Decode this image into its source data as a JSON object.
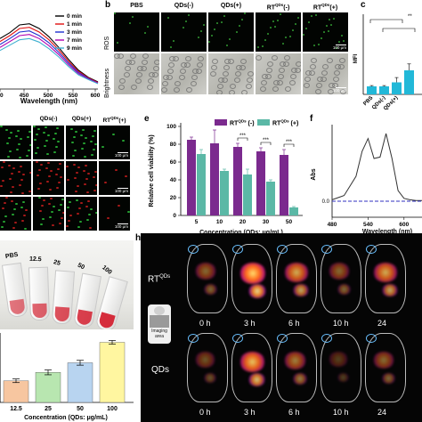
{
  "panel_a": {
    "legend": [
      "0 min",
      "1 min",
      "3 min",
      "7 min",
      "9 min"
    ],
    "legend_colors": [
      "#000000",
      "#e01010",
      "#2030d0",
      "#b000b0",
      "#40b0d0"
    ],
    "xlabel": "Wavelength (nm)",
    "ticks": [
      "00",
      "450",
      "500",
      "550",
      "600"
    ]
  },
  "panel_b": {
    "letter": "b",
    "cols": [
      "PBS",
      "QDs(-)",
      "QDs(+)",
      "RT",
      "RT"
    ],
    "col_sup": [
      "",
      "",
      "",
      "QDs",
      "QDs"
    ],
    "col_suffix": [
      "",
      "",
      "",
      "(-)",
      "(+)"
    ],
    "rows": [
      "ROS",
      "Brightness"
    ],
    "scale": "100 μm"
  },
  "panel_c": {
    "letter": "c",
    "ylabel": "MFI",
    "categories": [
      "PBS",
      "QDs(-)",
      "QDs(+)"
    ],
    "sig": "**"
  },
  "panel_d": {
    "cols": [
      "QDs(-)",
      "QDs(+)",
      "RT"
    ],
    "col_sup": [
      "",
      "",
      "QDs"
    ],
    "col_suffix": [
      "",
      "",
      "(+)"
    ],
    "scale": "100 μm"
  },
  "panel_e": {
    "letter": "e",
    "ylabel": "Relative cell viability (%)",
    "xlabel": "Concentration (QDs: μg/mL)",
    "legend1": "RT",
    "legend1_sup": "QDs",
    "legend1_suffix": " (-)",
    "legend2": "RT",
    "legend2_sup": "QDs",
    "legend2_suffix": " (+)",
    "yticks": [
      "0",
      "20",
      "40",
      "60",
      "80",
      "100"
    ],
    "sig": [
      "***",
      "***",
      "***"
    ]
  },
  "panel_f": {
    "letter": "f",
    "ylabel": "Abs",
    "xlabel": "Wavelength (nm)",
    "ticks": [
      "480",
      "540",
      "600"
    ],
    "ytick": "0.0"
  },
  "panel_g": {
    "tube_labels": [
      "PBS",
      "12.5",
      "25",
      "50",
      "100"
    ],
    "categories": [
      "12.5",
      "25",
      "50",
      "100"
    ],
    "xlabel": "Concentration (QDs: μg/mL)"
  },
  "panel_h": {
    "letter": "h",
    "times": [
      "0 h",
      "3 h",
      "6 h",
      "10 h",
      "24"
    ],
    "row1": "RT",
    "row1_sup": "QDs",
    "row2": "QDs",
    "imaging_area": "Imaging area"
  },
  "chart_data": [
    {
      "type": "line",
      "panel": "a",
      "xlabel": "Wavelength (nm)",
      "xlim": [
        400,
        600
      ],
      "series": [
        {
          "name": "0 min",
          "x": [
            400,
            420,
            440,
            460,
            480,
            500,
            520,
            540,
            560,
            580,
            600
          ],
          "y": [
            0.95,
            1.05,
            1.18,
            1.2,
            1.12,
            0.98,
            0.8,
            0.6,
            0.42,
            0.3,
            0.22
          ]
        },
        {
          "name": "1 min",
          "x": [
            400,
            420,
            440,
            460,
            480,
            500,
            520,
            540,
            560,
            580,
            600
          ],
          "y": [
            0.9,
            1.0,
            1.12,
            1.14,
            1.06,
            0.93,
            0.76,
            0.57,
            0.4,
            0.29,
            0.21
          ]
        },
        {
          "name": "3 min",
          "x": [
            400,
            420,
            440,
            460,
            480,
            500,
            520,
            540,
            560,
            580,
            600
          ],
          "y": [
            0.85,
            0.95,
            1.06,
            1.08,
            1.0,
            0.88,
            0.72,
            0.54,
            0.38,
            0.28,
            0.2
          ]
        },
        {
          "name": "7 min",
          "x": [
            400,
            420,
            440,
            460,
            480,
            500,
            520,
            540,
            560,
            580,
            600
          ],
          "y": [
            0.8,
            0.9,
            1.0,
            1.02,
            0.95,
            0.83,
            0.68,
            0.51,
            0.36,
            0.27,
            0.2
          ]
        },
        {
          "name": "9 min",
          "x": [
            400,
            420,
            440,
            460,
            480,
            500,
            520,
            540,
            560,
            580,
            600
          ],
          "y": [
            0.75,
            0.84,
            0.93,
            0.95,
            0.89,
            0.78,
            0.64,
            0.48,
            0.34,
            0.26,
            0.19
          ]
        }
      ]
    },
    {
      "type": "bar",
      "panel": "c",
      "ylabel": "MFI",
      "categories": [
        "PBS",
        "QDs(-)",
        "QDs(+)",
        ""
      ],
      "values": [
        1.0,
        1.0,
        1.5,
        3.0
      ],
      "errors": [
        0.1,
        0.1,
        0.6,
        0.8
      ]
    },
    {
      "type": "bar",
      "panel": "e",
      "ylabel": "Relative cell viability (%)",
      "xlabel": "Concentration (QDs: μg/mL)",
      "categories": [
        "5",
        "10",
        "20",
        "30",
        "50"
      ],
      "ylim": [
        0,
        100
      ],
      "series": [
        {
          "name": "RTQDs (-)",
          "values": [
            85,
            81,
            77,
            72,
            68
          ],
          "errors": [
            3,
            15,
            4,
            4,
            6
          ]
        },
        {
          "name": "RTQDs (+)",
          "values": [
            69,
            50,
            46,
            38,
            9
          ],
          "errors": [
            5,
            2,
            6,
            2,
            1
          ]
        }
      ]
    },
    {
      "type": "line",
      "panel": "f",
      "ylabel": "Abs",
      "xlabel": "Wavelength (nm)",
      "xlim": [
        480,
        630
      ],
      "series": [
        {
          "name": "",
          "x": [
            480,
            500,
            520,
            530,
            540,
            550,
            560,
            570,
            580,
            590,
            600,
            610,
            620,
            630
          ],
          "y": [
            0.02,
            0.08,
            0.35,
            0.7,
            0.88,
            0.6,
            0.62,
            0.95,
            0.6,
            0.15,
            0.04,
            0.02,
            0.01,
            0.01
          ]
        },
        {
          "name": "",
          "x": [
            480,
            630
          ],
          "y": [
            0.0,
            0.0
          ]
        }
      ]
    },
    {
      "type": "bar",
      "panel": "g",
      "xlabel": "Concentration (QDs: μg/mL)",
      "categories": [
        "12.5",
        "25",
        "50",
        "100"
      ],
      "values": [
        48,
        55,
        63,
        80
      ],
      "errors": [
        1.5,
        2,
        2,
        1.5
      ],
      "colors": [
        "#f7c6a0",
        "#b8e6b0",
        "#b8d4f0",
        "#fff6a0"
      ]
    }
  ]
}
